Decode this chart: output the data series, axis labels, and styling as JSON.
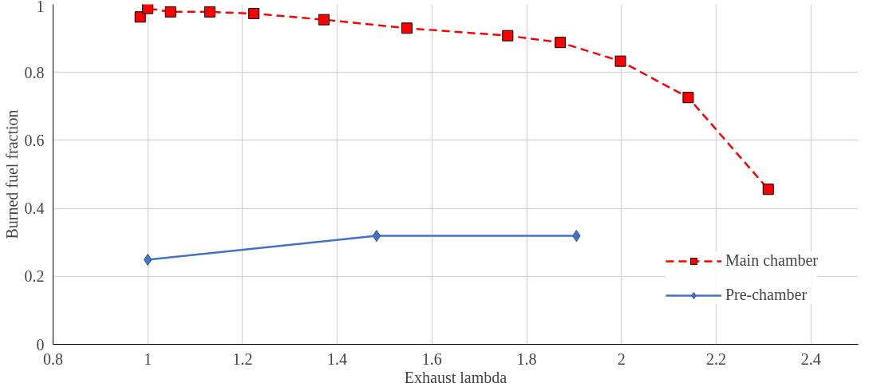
{
  "chart_data": {
    "type": "line",
    "xlabel": "Exhaust lambda",
    "ylabel": "Burned fuel fraction",
    "xlim": [
      0.8,
      2.5
    ],
    "xticks": [
      0.8,
      1,
      1.2,
      1.4,
      1.6,
      1.8,
      2,
      2.2,
      2.4
    ],
    "ylim": [
      0,
      1
    ],
    "yticks": [
      0,
      0.2,
      0.4,
      0.6,
      0.8,
      1
    ],
    "grid": true,
    "legend": "right",
    "series": [
      {
        "name": "Main chamber",
        "color": "#ff0000",
        "marker": "square",
        "line_style": "dashed",
        "x": [
          0.984,
          1.0,
          1.048,
          1.131,
          1.224,
          1.372,
          1.547,
          1.76,
          1.871,
          1.998,
          2.141,
          2.31
        ],
        "values": [
          0.963,
          0.988,
          0.978,
          0.978,
          0.973,
          0.955,
          0.93,
          0.908,
          0.888,
          0.833,
          0.726,
          0.456
        ]
      },
      {
        "name": "Pre-chamber",
        "color": "#4472c4",
        "marker": "diamond",
        "line_style": "solid",
        "x": [
          1.0,
          1.483,
          1.905
        ],
        "values": [
          0.249,
          0.319,
          0.319
        ]
      }
    ]
  }
}
